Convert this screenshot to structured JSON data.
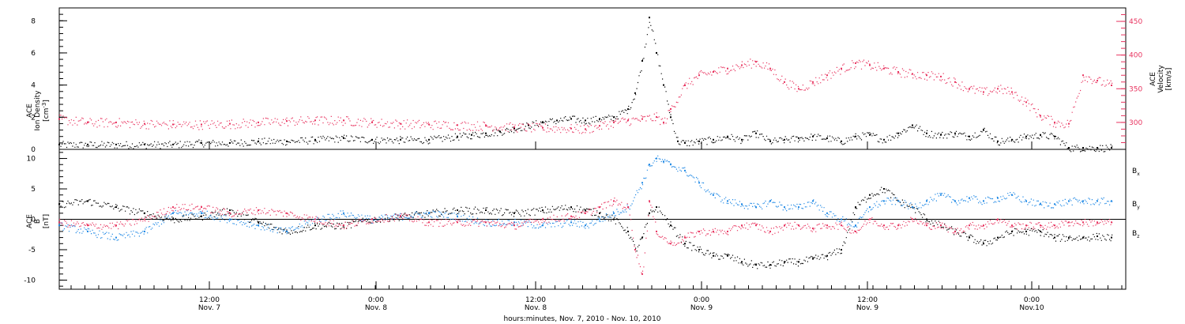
{
  "chart_data": [
    {
      "type": "scatter",
      "ylabel": [
        "ACE",
        "Ion Density",
        "[cm",
        "-3",
        "]"
      ],
      "ylabel_right": [
        "ACE",
        "Velocity",
        "[km/s]"
      ],
      "ylim": [
        0,
        8.8
      ],
      "yticks": [
        "0",
        "2",
        "4",
        "6",
        "8"
      ],
      "ylim_right": [
        260,
        470
      ],
      "yticks_right": [
        "300",
        "350",
        "400",
        "450"
      ],
      "xlim": [
        -5,
        70
      ],
      "series": [
        {
          "axis": "left",
          "color": "#000000",
          "x": [
            -5,
            -3,
            -1,
            1,
            3,
            5,
            7,
            9,
            11,
            13,
            15,
            17,
            19,
            21,
            23,
            24,
            25,
            26,
            27,
            28,
            29,
            30,
            31,
            32,
            33,
            34,
            35,
            35.5,
            36,
            36.5,
            37,
            37.5,
            38,
            38.5,
            39,
            40,
            41,
            42,
            43,
            44,
            45,
            46,
            47,
            48,
            49,
            50,
            51,
            52,
            53,
            54,
            55,
            56,
            57,
            58,
            59,
            60,
            61,
            62,
            63,
            64,
            65,
            66,
            67,
            68,
            69
          ],
          "values": [
            0.3,
            0.3,
            0.3,
            0.3,
            0.3,
            0.4,
            0.4,
            0.5,
            0.5,
            0.6,
            0.7,
            0.6,
            0.6,
            0.6,
            0.8,
            0.9,
            1,
            1.1,
            1.3,
            1.5,
            1.7,
            1.8,
            1.9,
            1.8,
            1.9,
            2,
            2.5,
            3.5,
            5.5,
            8.2,
            6,
            4,
            2,
            0.5,
            0.4,
            0.5,
            0.6,
            0.8,
            0.6,
            1,
            0.5,
            0.6,
            0.7,
            0.8,
            0.7,
            0.5,
            0.8,
            0.9,
            0.6,
            1,
            1.5,
            1,
            0.9,
            1,
            0.8,
            1.2,
            0.5,
            0.6,
            0.8,
            0.9,
            0.8,
            0.1,
            0.1,
            0.1,
            0.1
          ]
        },
        {
          "axis": "right",
          "color": "#e8335f",
          "x": [
            -5,
            -3,
            -1,
            1,
            3,
            5,
            7,
            9,
            11,
            13,
            15,
            17,
            19,
            21,
            23,
            25,
            27,
            29,
            31,
            32,
            33,
            34,
            35,
            36,
            37,
            37.5,
            38,
            39,
            40,
            41,
            42,
            43,
            44,
            45,
            46,
            47,
            48,
            49,
            50,
            51,
            52,
            53,
            54,
            55,
            56,
            57,
            58,
            59,
            60,
            61,
            62,
            63,
            64,
            65,
            66,
            67,
            68,
            69
          ],
          "values": [
            305,
            300,
            300,
            298,
            297,
            297,
            298,
            300,
            302,
            303,
            303,
            300,
            298,
            297,
            296,
            295,
            293,
            292,
            291,
            290,
            295,
            300,
            303,
            305,
            308,
            300,
            320,
            355,
            370,
            375,
            380,
            385,
            390,
            380,
            360,
            350,
            360,
            370,
            380,
            388,
            385,
            380,
            375,
            372,
            370,
            368,
            360,
            350,
            345,
            350,
            345,
            330,
            310,
            300,
            298,
            370,
            362,
            355
          ]
        }
      ]
    },
    {
      "type": "scatter",
      "ylabel": [
        "ACE",
        "B",
        "[nT]"
      ],
      "ylim": [
        -11.5,
        11.5
      ],
      "yticks": [
        "-10",
        "-5",
        "0",
        "5",
        "10"
      ],
      "xlim": [
        -5,
        70
      ],
      "xticks": [
        {
          "time": "12:00",
          "date": "Nov. 7"
        },
        {
          "time": "0:00",
          "date": "Nov. 8"
        },
        {
          "time": "12:00",
          "date": "Nov. 8"
        },
        {
          "time": "0:00",
          "date": "Nov. 9"
        },
        {
          "time": "12:00",
          "date": "Nov. 9"
        },
        {
          "time": "0:00",
          "date": "Nov.10"
        }
      ],
      "xlabel": "hours:minutes, Nov.  7, 2010 - Nov. 10, 2010",
      "series": [
        {
          "name": "B",
          "sub": "x",
          "color": "#000000",
          "x": [
            -5,
            -3,
            -1,
            1,
            3,
            5,
            7,
            9,
            11,
            13,
            15,
            17,
            19,
            21,
            23,
            25,
            27,
            29,
            31,
            32,
            33,
            34,
            35,
            35.5,
            36,
            36.5,
            37,
            38,
            39,
            40,
            41,
            42,
            43,
            44,
            45,
            46,
            47,
            48,
            49,
            50,
            51,
            52,
            53,
            54,
            55,
            56,
            57,
            58,
            59,
            60,
            61,
            62,
            63,
            64,
            65,
            66,
            67,
            68,
            69
          ],
          "values": [
            2.5,
            3,
            2,
            1,
            0,
            0.5,
            1.5,
            -0.5,
            -2,
            -1,
            -1,
            0,
            0.5,
            1,
            1.5,
            1.5,
            1,
            1.5,
            2,
            1.5,
            1,
            0,
            -2,
            -5,
            -3,
            1,
            2,
            -1,
            -4,
            -5,
            -6,
            -6,
            -7,
            -7.5,
            -7.5,
            -7,
            -7,
            -6.5,
            -6,
            -5,
            2,
            4,
            5,
            3,
            2,
            0,
            -1,
            -2,
            -3,
            -4,
            -3,
            -2,
            -2,
            -2,
            -3,
            -3,
            -3,
            -2.8,
            -3
          ]
        },
        {
          "name": "B",
          "sub": "y",
          "color": "#1e88e5",
          "x": [
            -5,
            -3,
            -1,
            1,
            3,
            5,
            7,
            9,
            11,
            13,
            15,
            17,
            19,
            21,
            23,
            25,
            27,
            29,
            31,
            32,
            33,
            34,
            35,
            36,
            36.5,
            37,
            37.5,
            38,
            39,
            40,
            41,
            42,
            43,
            44,
            45,
            46,
            47,
            48,
            49,
            50,
            51,
            52,
            53,
            54,
            55,
            56,
            57,
            58,
            59,
            60,
            61,
            62,
            63,
            64,
            65,
            66,
            67,
            68,
            69
          ],
          "values": [
            -1,
            -2,
            -3,
            -2,
            1,
            1,
            0,
            -1,
            -2,
            0,
            1,
            0,
            0.5,
            1,
            0.5,
            -0.5,
            -0.5,
            -1,
            -0.5,
            -1,
            0,
            1,
            2,
            6,
            9,
            10,
            9.5,
            9,
            8,
            6,
            4,
            3,
            2.5,
            2,
            3,
            2,
            2,
            3,
            1,
            0,
            -1,
            2,
            3,
            3,
            2,
            3,
            4,
            3,
            3.5,
            3,
            3.5,
            4,
            3,
            2.5,
            2.5,
            3,
            3,
            3,
            3
          ]
        },
        {
          "name": "B",
          "sub": "z",
          "color": "#e8335f",
          "x": [
            -5,
            -3,
            -1,
            1,
            3,
            5,
            7,
            9,
            11,
            13,
            15,
            17,
            19,
            21,
            23,
            25,
            27,
            29,
            31,
            32,
            33,
            34,
            35,
            35.5,
            36,
            36.5,
            37,
            38,
            39,
            40,
            41,
            42,
            43,
            44,
            45,
            46,
            47,
            48,
            49,
            50,
            51,
            52,
            53,
            54,
            55,
            56,
            57,
            58,
            59,
            60,
            61,
            62,
            63,
            64,
            65,
            66,
            67,
            68,
            69
          ],
          "values": [
            -0.5,
            -1,
            -1,
            0,
            2,
            2,
            1,
            1.5,
            1,
            0,
            -1,
            0,
            0.5,
            -0.5,
            -0.5,
            -0.5,
            -1,
            0,
            0.5,
            1,
            2,
            3,
            2,
            -5,
            -9,
            3,
            -2,
            -4,
            -3,
            -2,
            -2,
            -2,
            -1,
            -1,
            -2,
            -1,
            -1,
            -1.5,
            -1,
            -1,
            -2,
            0,
            -1,
            -1,
            0,
            -1,
            -1,
            -2,
            -1,
            -1,
            0,
            -1,
            -1,
            -1,
            -1,
            -0.5,
            -0.5,
            -0.5,
            -0.5
          ]
        }
      ]
    }
  ]
}
